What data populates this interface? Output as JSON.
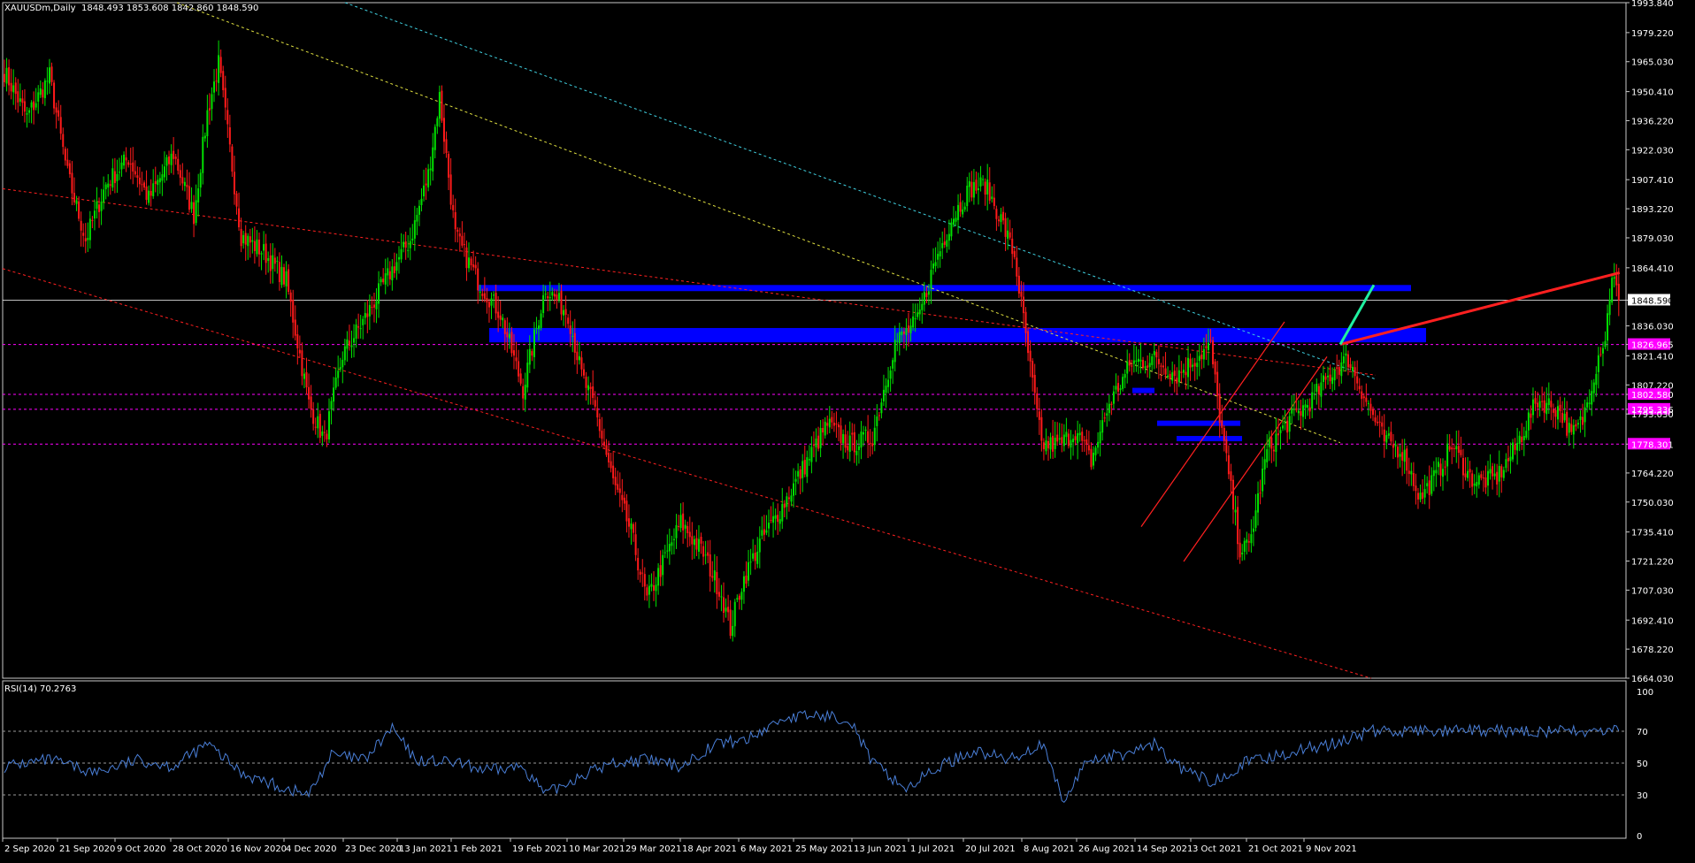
{
  "colors": {
    "background": "#000000",
    "frame": "#c8c8c8",
    "bull": "#00e000",
    "bear": "#ff1a1a",
    "zone": "#0000ff",
    "level_line": "#ff00ff",
    "rsi_line": "#4a7fd8",
    "price_marker": "#ffffff",
    "channel_red": "#ff2020",
    "channel_cyan": "#3fd0e0",
    "channel_yellow": "#e0e040",
    "arrow_red": "#ff2020",
    "arrow_green": "#20f0a0"
  },
  "header": {
    "symbol": "XAUUSDm,Daily",
    "ohlc": "1848.493 1853.608 1842.860 1848.590"
  },
  "chart_data": [
    {
      "type": "candlestick",
      "symbol": "XAUUSDm",
      "timeframe": "Daily",
      "ylim": [
        1664.03,
        1993.84
      ],
      "y_ticks": [
        "1993.840",
        "1979.220",
        "1965.030",
        "1950.410",
        "1936.220",
        "1922.030",
        "1907.410",
        "1893.220",
        "1879.030",
        "1864.410",
        "1848.590",
        "1836.030",
        "1826.965",
        "1821.410",
        "1807.220",
        "1802.580",
        "1795.336",
        "1793.030",
        "1778.301",
        "1764.220",
        "1750.030",
        "1735.410",
        "1721.220",
        "1707.030",
        "1692.410",
        "1678.220",
        "1664.030"
      ],
      "x_labels": [
        "2 Sep 2020",
        "21 Sep 2020",
        "9 Oct 2020",
        "28 Oct 2020",
        "16 Nov 2020",
        "4 Dec 2020",
        "23 Dec 2020",
        "13 Jan 2021",
        "1 Feb 2021",
        "19 Feb 2021",
        "10 Mar 2021",
        "29 Mar 2021",
        "18 Apr 2021",
        "6 May 2021",
        "25 May 2021",
        "13 Jun 2021",
        "1 Jul 2021",
        "20 Jul 2021",
        "8 Aug 2021",
        "26 Aug 2021",
        "14 Sep 2021",
        "3 Oct 2021",
        "21 Oct 2021",
        "9 Nov 2021"
      ],
      "path_anchors": [
        [
          0,
          1960
        ],
        [
          10,
          1938
        ],
        [
          20,
          1958
        ],
        [
          28,
          1910
        ],
        [
          36,
          1878
        ],
        [
          45,
          1905
        ],
        [
          55,
          1918
        ],
        [
          64,
          1898
        ],
        [
          75,
          1920
        ],
        [
          84,
          1890
        ],
        [
          90,
          1940
        ],
        [
          95,
          1964
        ],
        [
          105,
          1880
        ],
        [
          115,
          1872
        ],
        [
          125,
          1858
        ],
        [
          135,
          1798
        ],
        [
          142,
          1780
        ],
        [
          150,
          1822
        ],
        [
          160,
          1840
        ],
        [
          170,
          1860
        ],
        [
          180,
          1878
        ],
        [
          188,
          1910
        ],
        [
          193,
          1948
        ],
        [
          200,
          1880
        ],
        [
          210,
          1858
        ],
        [
          220,
          1842
        ],
        [
          230,
          1805
        ],
        [
          240,
          1855
        ],
        [
          250,
          1842
        ],
        [
          256,
          1812
        ],
        [
          262,
          1795
        ],
        [
          270,
          1760
        ],
        [
          278,
          1735
        ],
        [
          285,
          1702
        ],
        [
          292,
          1720
        ],
        [
          300,
          1740
        ],
        [
          310,
          1725
        ],
        [
          318,
          1705
        ],
        [
          322,
          1688
        ],
        [
          327,
          1710
        ],
        [
          335,
          1730
        ],
        [
          345,
          1748
        ],
        [
          355,
          1768
        ],
        [
          365,
          1788
        ],
        [
          375,
          1778
        ],
        [
          385,
          1782
        ],
        [
          395,
          1828
        ],
        [
          405,
          1838
        ],
        [
          412,
          1865
        ],
        [
          420,
          1888
        ],
        [
          428,
          1903
        ],
        [
          435,
          1905
        ],
        [
          442,
          1888
        ],
        [
          448,
          1870
        ],
        [
          455,
          1815
        ],
        [
          460,
          1778
        ],
        [
          468,
          1778
        ],
        [
          475,
          1785
        ],
        [
          482,
          1770
        ],
        [
          490,
          1798
        ],
        [
          500,
          1818
        ],
        [
          510,
          1820
        ],
        [
          520,
          1812
        ],
        [
          530,
          1822
        ],
        [
          535,
          1826
        ],
        [
          538,
          1800
        ],
        [
          542,
          1770
        ],
        [
          548,
          1727
        ],
        [
          552,
          1728
        ],
        [
          560,
          1775
        ],
        [
          570,
          1790
        ],
        [
          580,
          1800
        ],
        [
          590,
          1815
        ],
        [
          596,
          1820
        ],
        [
          605,
          1797
        ],
        [
          612,
          1780
        ],
        [
          620,
          1775
        ],
        [
          628,
          1752
        ],
        [
          635,
          1763
        ],
        [
          642,
          1778
        ],
        [
          650,
          1762
        ],
        [
          655,
          1760
        ],
        [
          662,
          1762
        ],
        [
          670,
          1776
        ],
        [
          680,
          1800
        ],
        [
          690,
          1795
        ],
        [
          695,
          1782
        ],
        [
          700,
          1790
        ],
        [
          708,
          1826
        ],
        [
          710,
          1830
        ],
        [
          713,
          1862
        ],
        [
          716,
          1849
        ]
      ],
      "last_close": 1848.59,
      "horizontal_levels": [
        1848.59,
        1826.965,
        1802.58,
        1795.336,
        1778.301
      ],
      "level_labels": [
        "1848.590",
        "1826.965",
        "1802.580",
        "1795.336",
        "1778.301"
      ],
      "supply_zones": [
        {
          "from": 1853,
          "to": 1856
        },
        {
          "from": 1828,
          "to": 1835
        }
      ],
      "small_zones": [
        {
          "level": 1804.5
        },
        {
          "level": 1788.5
        },
        {
          "level": 1781.0
        }
      ],
      "trendlines": [
        {
          "color": "red",
          "style": "dashed",
          "p1": [
            "2 Sep 2020",
            1903
          ],
          "p2": [
            "9 Nov 2021",
            1812
          ]
        },
        {
          "color": "red",
          "style": "dashed",
          "p1": [
            "2 Sep 2020",
            1864
          ],
          "p2": [
            "9 Nov 2021",
            1664
          ]
        },
        {
          "color": "cyan",
          "style": "dashed",
          "p1": [
            "23 Dec 2020",
            1993.84
          ],
          "p2": [
            "9 Nov 2021",
            1810
          ]
        },
        {
          "color": "yellow",
          "style": "dashed",
          "p1": [
            "21 Sep 2020",
            1993.84
          ],
          "p2": [
            "9 Nov 2021",
            1779
          ]
        }
      ],
      "projection": [
        {
          "color": "red",
          "from": [
            1864,
            "9 Nov 2021"
          ],
          "to": [
            1827,
            "9 Nov 2021"
          ]
        },
        {
          "color": "green",
          "from": [
            1827,
            "9 Nov 2021"
          ],
          "to": [
            1856,
            "9 Nov 2021"
          ]
        }
      ]
    },
    {
      "type": "line",
      "name": "RSI(14)",
      "last_value": "70.2763",
      "ylim": [
        0,
        100
      ],
      "y_ticks": [
        "100",
        "70",
        "50",
        "30",
        "0"
      ],
      "levels": [
        70,
        50,
        30
      ],
      "path_anchors": [
        [
          0,
          48
        ],
        [
          20,
          52
        ],
        [
          40,
          44
        ],
        [
          60,
          52
        ],
        [
          75,
          48
        ],
        [
          90,
          62
        ],
        [
          105,
          44
        ],
        [
          120,
          36
        ],
        [
          135,
          30
        ],
        [
          145,
          55
        ],
        [
          160,
          52
        ],
        [
          172,
          72
        ],
        [
          182,
          52
        ],
        [
          200,
          50
        ],
        [
          215,
          45
        ],
        [
          230,
          48
        ],
        [
          240,
          30
        ],
        [
          255,
          42
        ],
        [
          270,
          50
        ],
        [
          285,
          52
        ],
        [
          300,
          48
        ],
        [
          315,
          62
        ],
        [
          330,
          65
        ],
        [
          345,
          78
        ],
        [
          360,
          80
        ],
        [
          375,
          78
        ],
        [
          385,
          50
        ],
        [
          400,
          34
        ],
        [
          415,
          48
        ],
        [
          430,
          58
        ],
        [
          445,
          52
        ],
        [
          460,
          62
        ],
        [
          470,
          25
        ],
        [
          480,
          52
        ],
        [
          495,
          55
        ],
        [
          510,
          62
        ],
        [
          520,
          48
        ],
        [
          535,
          38
        ],
        [
          550,
          50
        ],
        [
          565,
          55
        ],
        [
          580,
          60
        ],
        [
          590,
          62
        ],
        [
          605,
          70
        ]
      ]
    }
  ]
}
